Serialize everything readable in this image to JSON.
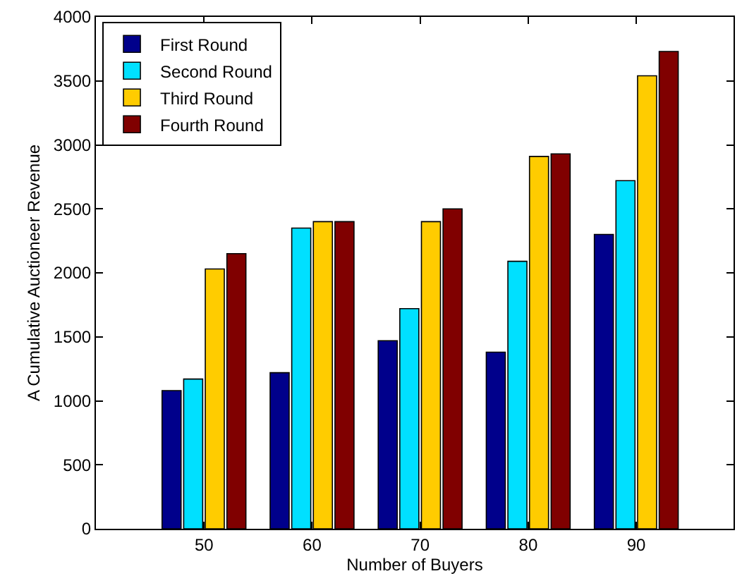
{
  "chart_data": {
    "type": "bar",
    "xlabel": "Number of Buyers",
    "ylabel": "A Cumulative Auctioneer Revenue",
    "x": [
      50,
      60,
      70,
      80,
      90
    ],
    "series": [
      {
        "name": "First Round",
        "color": "#00008b",
        "values": [
          1080,
          1220,
          1470,
          1380,
          2300
        ]
      },
      {
        "name": "Second Round",
        "color": "#00e0ff",
        "values": [
          1170,
          2350,
          1720,
          2090,
          2720
        ]
      },
      {
        "name": "Third Round",
        "color": "#ffcc00",
        "values": [
          2030,
          2400,
          2400,
          2910,
          3540
        ]
      },
      {
        "name": "Fourth Round",
        "color": "#800000",
        "values": [
          2150,
          2400,
          2500,
          2930,
          3730
        ]
      }
    ],
    "xlim": [
      40,
      99
    ],
    "xticks": [
      50,
      60,
      70,
      80,
      90
    ],
    "ylim": [
      0,
      4000
    ],
    "yticks": [
      0,
      500,
      1000,
      1500,
      2000,
      2500,
      3000,
      3500,
      4000
    ],
    "grid": false,
    "legend": "top left"
  }
}
